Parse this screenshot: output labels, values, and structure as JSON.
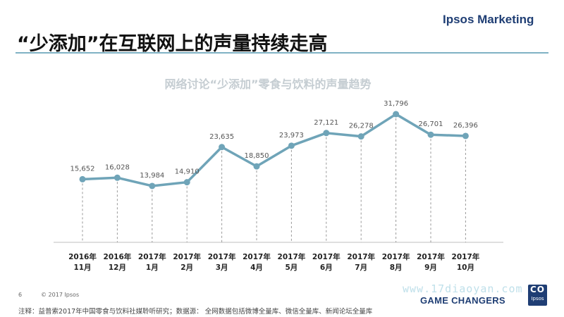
{
  "brand": "Ipsos Marketing",
  "headline": "“少添加”在互联网上的声量持续走高",
  "footer": {
    "page_number": "6",
    "copyright": "© 2017 Ipsos",
    "note": "注释：益普索2017年中国零食与饮料社媒聆听研究；数据源：  全网数据包括微博全量库、微信全量库、新闻论坛全量库",
    "tagline": "GAME CHANGERS",
    "watermark": "www.17diaoyan.com",
    "logo_top": "CO",
    "logo_bottom": "Ipsos"
  },
  "colors": {
    "series": "#6fa4b8",
    "title_gray": "#c5cdd2",
    "brand": "#1f3e74",
    "rule": "#7fb2c4"
  },
  "chart_data": {
    "type": "line",
    "title": "网络讨论“少添加”零食与饮料的声量趋势",
    "categories": [
      [
        "2016年",
        "11月"
      ],
      [
        "2016年",
        "12月"
      ],
      [
        "2017年",
        "1月"
      ],
      [
        "2017年",
        "2月"
      ],
      [
        "2017年",
        "3月"
      ],
      [
        "2017年",
        "4月"
      ],
      [
        "2017年",
        "5月"
      ],
      [
        "2017年",
        "6月"
      ],
      [
        "2017年",
        "7月"
      ],
      [
        "2017年",
        "8月"
      ],
      [
        "2017年",
        "9月"
      ],
      [
        "2017年",
        "10月"
      ]
    ],
    "values": [
      15652,
      16028,
      13984,
      14910,
      23635,
      18850,
      23973,
      27121,
      26278,
      31796,
      26701,
      26396
    ],
    "data_labels": [
      "15,652",
      "16,028",
      "13,984",
      "14,910",
      "23,635",
      "18,850",
      "23,973",
      "27,121",
      "26,278",
      "31,796",
      "26,701",
      "26,396"
    ],
    "ylim": [
      0,
      36000
    ],
    "grid": false,
    "drop_lines": true,
    "markers": true
  }
}
